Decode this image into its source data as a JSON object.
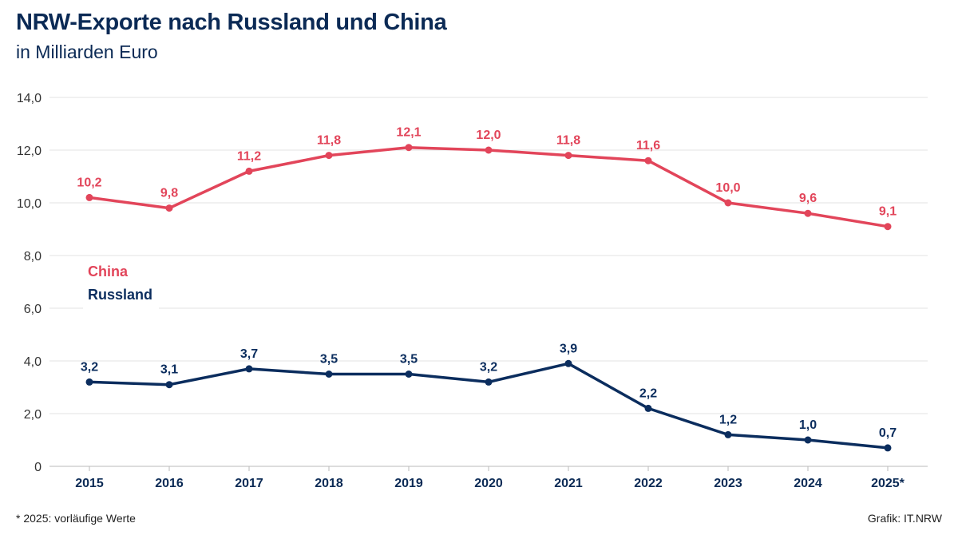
{
  "header": {
    "title": "NRW-Exporte nach Russland und China",
    "subtitle": "in Milliarden Euro"
  },
  "footer": {
    "footnote": "*  2025: vorläufige Werte",
    "credit": "Grafik: IT.NRW"
  },
  "colors": {
    "china": "#e2455a",
    "russland": "#0b2d5e",
    "grid": "#e3e3e3",
    "axis_text": "#333333"
  },
  "chart_data": {
    "type": "line",
    "title": "NRW-Exporte nach Russland und China",
    "subtitle": "in Milliarden Euro",
    "xlabel": "",
    "ylabel": "",
    "categories": [
      "2015",
      "2016",
      "2017",
      "2018",
      "2019",
      "2020",
      "2021",
      "2022",
      "2023",
      "2024",
      "2025*"
    ],
    "ylim": [
      0,
      14
    ],
    "yticks": [
      0,
      2,
      4,
      6,
      8,
      10,
      12,
      14
    ],
    "ytick_labels": [
      "0",
      "2,0",
      "4,0",
      "6,0",
      "8,0",
      "10,0",
      "12,0",
      "14,0"
    ],
    "grid": true,
    "legend_position": "left-middle",
    "series": [
      {
        "name": "China",
        "color": "#e2455a",
        "values": [
          10.2,
          9.8,
          11.2,
          11.8,
          12.1,
          12.0,
          11.8,
          11.6,
          10.0,
          9.6,
          9.1
        ],
        "labels": [
          "10,2",
          "9,8",
          "11,2",
          "11,8",
          "12,1",
          "12,0",
          "11,8",
          "11,6",
          "10,0",
          "9,6",
          "9,1"
        ]
      },
      {
        "name": "Russland",
        "color": "#0b2d5e",
        "values": [
          3.2,
          3.1,
          3.7,
          3.5,
          3.5,
          3.2,
          3.9,
          2.2,
          1.2,
          1.0,
          0.7
        ],
        "labels": [
          "3,2",
          "3,1",
          "3,7",
          "3,5",
          "3,5",
          "3,2",
          "3,9",
          "2,2",
          "1,2",
          "1,0",
          "0,7"
        ]
      }
    ]
  }
}
